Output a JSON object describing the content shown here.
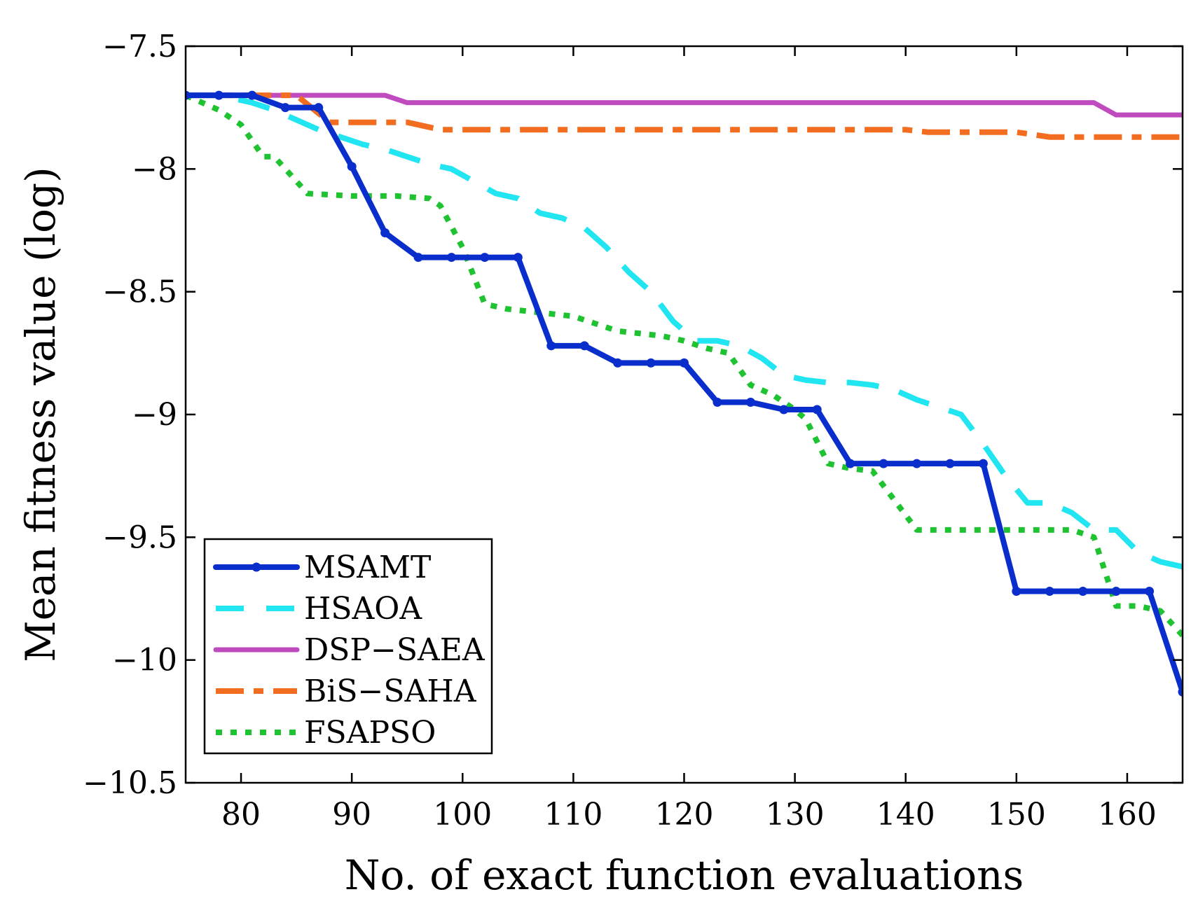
{
  "chart_data": {
    "type": "line",
    "title": "",
    "xlabel": "No. of exact function evaluations",
    "ylabel": "Mean fitness value (log)",
    "xlim": [
      75,
      165
    ],
    "ylim": [
      -10.5,
      -7.5
    ],
    "xticks": [
      80,
      90,
      100,
      110,
      120,
      130,
      140,
      150,
      160
    ],
    "xtick_labels": [
      "80",
      "90",
      "100",
      "110",
      "120",
      "130",
      "140",
      "150",
      "160"
    ],
    "yticks": [
      -7.5,
      -8,
      -8.5,
      -9,
      -9.5,
      -10,
      -10.5
    ],
    "ytick_labels": [
      "−7.5",
      "−8",
      "−8.5",
      "−9",
      "−9.5",
      "−10",
      "−10.5"
    ],
    "legend_position": "bottom-left",
    "grid": false,
    "series": [
      {
        "name": "MSAMT",
        "color": "#0a2ecc",
        "style": "solid-markers",
        "x": [
          75,
          78,
          81,
          84,
          87,
          90,
          93,
          96,
          99,
          102,
          105,
          108,
          111,
          114,
          117,
          120,
          123,
          126,
          129,
          132,
          135,
          138,
          141,
          144,
          147,
          150,
          153,
          156,
          159,
          162,
          165
        ],
        "y": [
          -7.7,
          -7.7,
          -7.7,
          -7.75,
          -7.75,
          -7.99,
          -8.26,
          -8.36,
          -8.36,
          -8.36,
          -8.36,
          -8.72,
          -8.72,
          -8.79,
          -8.79,
          -8.79,
          -8.95,
          -8.95,
          -8.98,
          -8.98,
          -9.2,
          -9.2,
          -9.2,
          -9.2,
          -9.2,
          -9.72,
          -9.72,
          -9.72,
          -9.72,
          -9.72,
          -10.13
        ]
      },
      {
        "name": "HSAOA",
        "color": "#22e5f2",
        "style": "dashed",
        "x": [
          75,
          78,
          81,
          83,
          85,
          87,
          89,
          91,
          93,
          95,
          97,
          99,
          101,
          103,
          105,
          107,
          109,
          111,
          113,
          115,
          117,
          119,
          121,
          123,
          125,
          127,
          129,
          131,
          133,
          135,
          137,
          139,
          141,
          143,
          145,
          147,
          149,
          151,
          153,
          155,
          157,
          159,
          161,
          163,
          165
        ],
        "y": [
          -7.7,
          -7.7,
          -7.73,
          -7.76,
          -7.8,
          -7.84,
          -7.87,
          -7.9,
          -7.92,
          -7.95,
          -7.98,
          -8.0,
          -8.05,
          -8.1,
          -8.12,
          -8.18,
          -8.2,
          -8.24,
          -8.32,
          -8.42,
          -8.5,
          -8.62,
          -8.7,
          -8.7,
          -8.72,
          -8.77,
          -8.84,
          -8.86,
          -8.87,
          -8.87,
          -8.88,
          -8.9,
          -8.94,
          -8.97,
          -9.0,
          -9.12,
          -9.25,
          -9.36,
          -9.36,
          -9.4,
          -9.47,
          -9.47,
          -9.56,
          -9.6,
          -9.62
        ]
      },
      {
        "name": "DSP−SAEA",
        "color": "#bf4bbf",
        "style": "solid",
        "x": [
          75,
          93,
          95,
          157,
          159,
          165
        ],
        "y": [
          -7.7,
          -7.7,
          -7.73,
          -7.73,
          -7.78,
          -7.78
        ]
      },
      {
        "name": "BiS−SAHA",
        "color": "#f26d1f",
        "style": "dash-long",
        "x": [
          75,
          85,
          88,
          95,
          98,
          140,
          142,
          150,
          153,
          165
        ],
        "y": [
          -7.7,
          -7.7,
          -7.81,
          -7.81,
          -7.84,
          -7.84,
          -7.85,
          -7.85,
          -7.87,
          -7.87
        ]
      },
      {
        "name": "FSAPSO",
        "color": "#1fc231",
        "style": "dotted",
        "x": [
          75,
          78,
          80,
          82,
          83,
          84,
          86,
          90,
          94,
          97,
          98,
          100,
          102,
          104,
          106,
          108,
          110,
          112,
          114,
          116,
          118,
          120,
          122,
          124,
          126,
          128,
          130,
          131,
          133,
          135,
          137,
          139,
          141,
          145,
          150,
          155,
          157,
          159,
          161,
          163,
          165
        ],
        "y": [
          -7.7,
          -7.76,
          -7.82,
          -7.95,
          -7.95,
          -8.0,
          -8.1,
          -8.11,
          -8.11,
          -8.12,
          -8.15,
          -8.32,
          -8.55,
          -8.57,
          -8.58,
          -8.59,
          -8.6,
          -8.63,
          -8.66,
          -8.67,
          -8.68,
          -8.7,
          -8.73,
          -8.75,
          -8.88,
          -8.92,
          -8.98,
          -9.02,
          -9.2,
          -9.22,
          -9.23,
          -9.35,
          -9.47,
          -9.47,
          -9.47,
          -9.47,
          -9.5,
          -9.78,
          -9.78,
          -9.8,
          -9.9
        ]
      }
    ]
  }
}
